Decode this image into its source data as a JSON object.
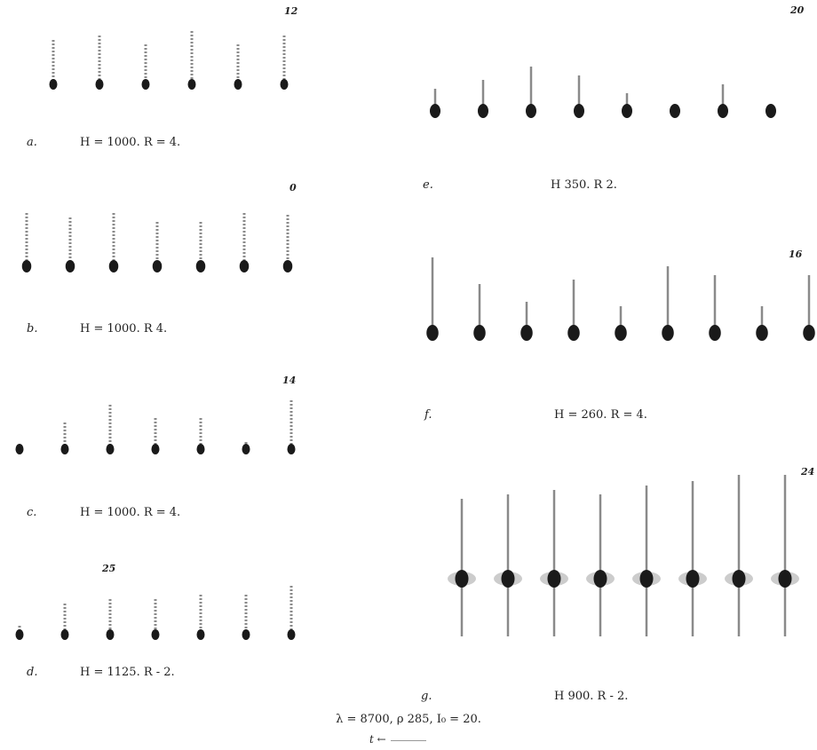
{
  "panels": [
    {
      "id": "a",
      "letter": "a.",
      "formula": "H = 1000.   R = 4.",
      "plate_no": "12",
      "spark_count": 6
    },
    {
      "id": "b",
      "letter": "b.",
      "formula": "H = 1000.   R    4.",
      "plate_no": "0",
      "spark_count": 7
    },
    {
      "id": "c",
      "letter": "c.",
      "formula": "H = 1000.   R = 4.",
      "plate_no": "14",
      "spark_count": 7
    },
    {
      "id": "d",
      "letter": "d.",
      "formula": "H = 1125.   R  - 2.",
      "plate_no": "25",
      "spark_count": 7
    },
    {
      "id": "e",
      "letter": "e.",
      "formula": "H     350.   R     2.",
      "plate_no": "20",
      "spark_count": 8
    },
    {
      "id": "f",
      "letter": "f.",
      "formula": "H = 260.   R = 4.",
      "plate_no": "16",
      "spark_count": 9
    },
    {
      "id": "g",
      "letter": "g.",
      "formula": "H     900.   R  - 2.",
      "plate_no": "24",
      "spark_count": 8
    }
  ],
  "footer": {
    "text": "λ = 8700,  ρ    285,  I₀ = 20.",
    "arrow_label": "t ←"
  },
  "colors": {
    "ink": "#1a1a1a",
    "trace": "#8a8a8a"
  }
}
